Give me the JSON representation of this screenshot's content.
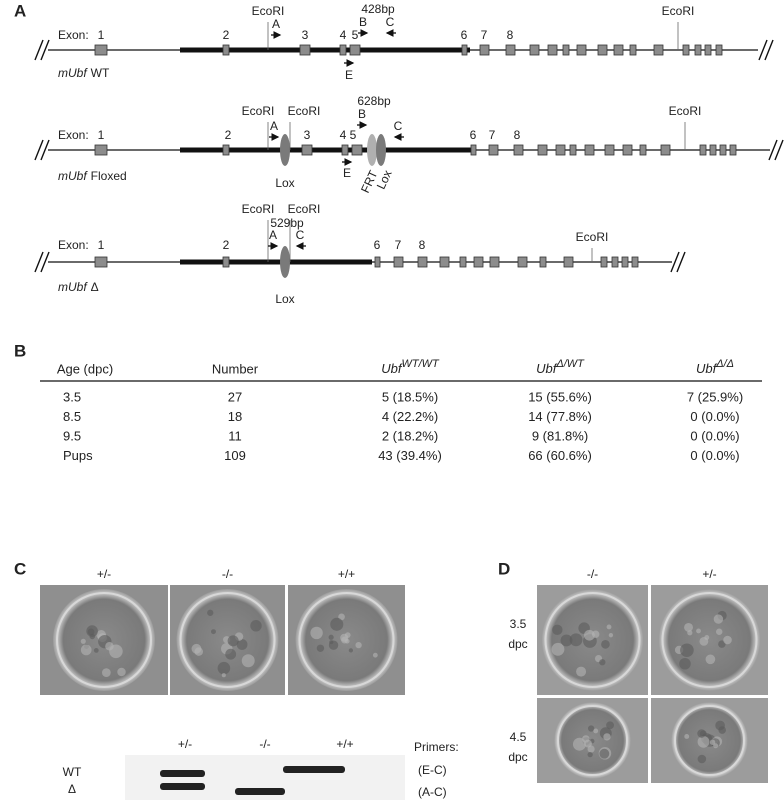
{
  "panel_a": {
    "label": "A",
    "wt": {
      "gene": "mUbf",
      "allele": "WT",
      "exon_label": "Exon:",
      "exons": [
        "1",
        "2",
        "3",
        "4",
        "5",
        "6",
        "7",
        "8"
      ],
      "ecori": [
        "EcoRI",
        "EcoRI"
      ],
      "primers": [
        "A",
        "B",
        "C",
        "E"
      ],
      "product": "428bp"
    },
    "floxed": {
      "gene": "mUbf",
      "allele": "Floxed",
      "exon_label": "Exon:",
      "exons": [
        "1",
        "2",
        "3",
        "4",
        "5",
        "6",
        "7",
        "8"
      ],
      "ecori": [
        "EcoRI",
        "EcoRI",
        "EcoRI"
      ],
      "primers": [
        "A",
        "B",
        "C",
        "E"
      ],
      "product": "628bp",
      "sites": [
        "Lox",
        "FRT",
        "Lox"
      ]
    },
    "delta": {
      "gene": "mUbf",
      "allele": "Δ",
      "exon_label": "Exon:",
      "exons": [
        "1",
        "2",
        "6",
        "7",
        "8"
      ],
      "ecori": [
        "EcoRI",
        "EcoRI",
        "EcoRI"
      ],
      "primers": [
        "A",
        "C"
      ],
      "product": "529bp",
      "sites": [
        "Lox"
      ]
    }
  },
  "panel_b": {
    "label": "B",
    "header": [
      "Age (dpc)",
      "Number",
      {
        "base": "Ubf",
        "sup": "WT/WT"
      },
      {
        "base": "Ubf",
        "sup": "Δ/WT"
      },
      {
        "base": "Ubf",
        "sup": "Δ/Δ"
      }
    ],
    "rows": [
      [
        "3.5",
        "27",
        "5 (18.5%)",
        "15 (55.6%)",
        "7 (25.9%)"
      ],
      [
        "8.5",
        "18",
        "4 (22.2%)",
        "14 (77.8%)",
        "0 (0.0%)"
      ],
      [
        "9.5",
        "11",
        "2 (18.2%)",
        "9 (81.8%)",
        "0 (0.0%)"
      ],
      [
        "Pups",
        "109",
        "43 (39.4%)",
        "66 (60.6%)",
        "0 (0.0%)"
      ]
    ]
  },
  "panel_c": {
    "label": "C",
    "genotypes": [
      "+/-",
      "-/-",
      "+/+"
    ],
    "gel_lanes": [
      "+/-",
      "-/-",
      "+/+"
    ],
    "band_labels": [
      "WT",
      "Δ"
    ],
    "primers_title": "Primers:",
    "primer_pairs": [
      "(E-C)",
      "(A-C)"
    ]
  },
  "panel_d": {
    "label": "D",
    "genotypes": [
      "-/-",
      "+/-"
    ],
    "stages": [
      [
        "3.5",
        "dpc"
      ],
      [
        "4.5",
        "dpc"
      ]
    ]
  }
}
